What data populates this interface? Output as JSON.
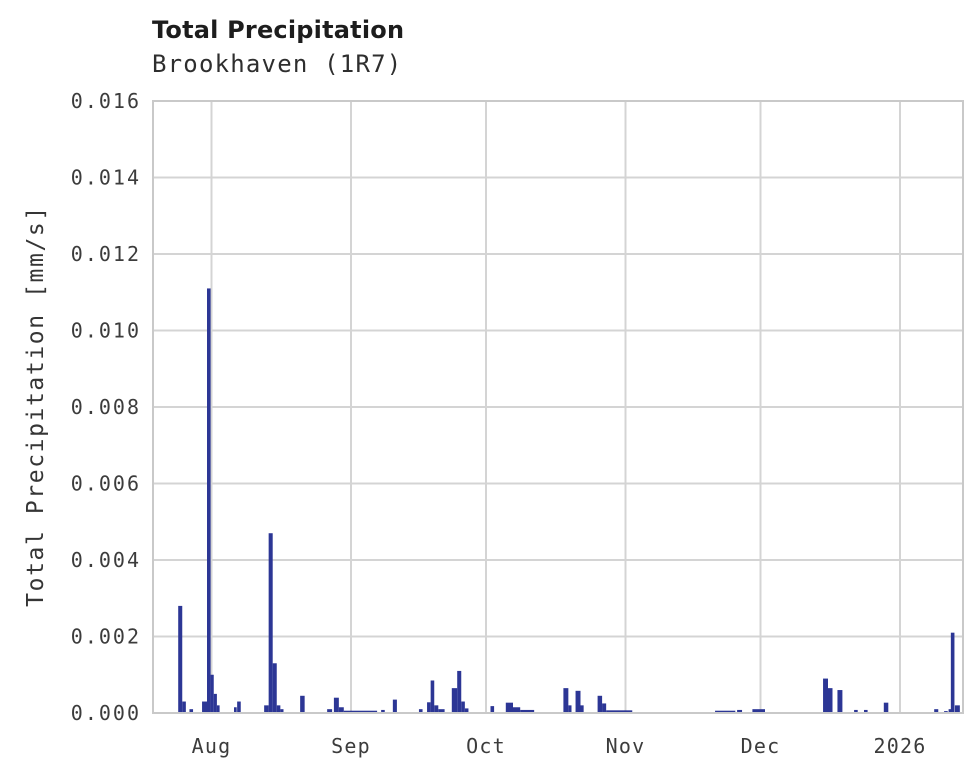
{
  "header": {
    "title": "Total Precipitation",
    "subtitle": "Brookhaven (1R7)"
  },
  "colors": {
    "bar": "#2c3695",
    "grid": "#d4d4d4",
    "border": "#c9c9c9",
    "tick_text": "#3c3c3c",
    "title_text": "#1d1d1d"
  },
  "chart_data": {
    "type": "bar",
    "title": "Total Precipitation",
    "subtitle": "Brookhaven (1R7)",
    "xlabel": "",
    "ylabel": "Total Precipitation [mm/s]",
    "ylim": [
      0,
      0.016
    ],
    "y_ticks": [
      "0.000",
      "0.002",
      "0.004",
      "0.006",
      "0.008",
      "0.010",
      "0.012",
      "0.014",
      "0.016"
    ],
    "y_tick_values": [
      0,
      0.002,
      0.004,
      0.006,
      0.008,
      0.01,
      0.012,
      0.014,
      0.016
    ],
    "grid": true,
    "legend": false,
    "x_axis_start_date": "2025-07-19",
    "x_axis_span_days": 180,
    "x_ticks": [
      {
        "label": "Aug",
        "day": 13
      },
      {
        "label": "Sep",
        "day": 44
      },
      {
        "label": "Oct",
        "day": 74
      },
      {
        "label": "Nov",
        "day": 105
      },
      {
        "label": "Dec",
        "day": 135
      },
      {
        "label": "2026",
        "day": 166
      }
    ],
    "series_name": "Total Precipitation [mm/s]",
    "bars_day_width_value": [
      [
        5.6,
        0.9,
        0.0028
      ],
      [
        6.5,
        0.8,
        0.0003
      ],
      [
        8.1,
        0.8,
        0.0001
      ],
      [
        10.9,
        1.1,
        0.0003
      ],
      [
        12.0,
        0.8,
        0.0111
      ],
      [
        12.8,
        0.7,
        0.001
      ],
      [
        13.5,
        0.7,
        0.0005
      ],
      [
        14.2,
        0.6,
        0.0002
      ],
      [
        18.0,
        0.6,
        0.00015
      ],
      [
        18.7,
        0.8,
        0.0003
      ],
      [
        24.7,
        1.0,
        0.0002
      ],
      [
        25.7,
        0.9,
        0.0047
      ],
      [
        26.6,
        0.9,
        0.0013
      ],
      [
        27.5,
        0.8,
        0.0002
      ],
      [
        28.3,
        0.7,
        0.0001
      ],
      [
        32.7,
        1.0,
        0.00045
      ],
      [
        38.7,
        1.1,
        0.0001
      ],
      [
        40.2,
        1.1,
        0.0004
      ],
      [
        41.3,
        1.1,
        0.00015
      ],
      [
        42.4,
        7.4,
        6e-05
      ],
      [
        50.7,
        0.8,
        8e-05
      ],
      [
        53.3,
        0.9,
        0.00035
      ],
      [
        59.1,
        0.8,
        0.0001
      ],
      [
        60.9,
        0.8,
        0.00028
      ],
      [
        61.7,
        0.8,
        0.00085
      ],
      [
        62.5,
        0.9,
        0.0002
      ],
      [
        63.4,
        1.4,
        0.0001
      ],
      [
        66.4,
        1.2,
        0.00065
      ],
      [
        67.6,
        0.9,
        0.0011
      ],
      [
        68.5,
        0.8,
        0.0003
      ],
      [
        69.3,
        0.8,
        0.00012
      ],
      [
        75.0,
        0.8,
        0.00018
      ],
      [
        78.4,
        1.6,
        0.00027
      ],
      [
        80.0,
        1.6,
        0.00015
      ],
      [
        81.6,
        3.1,
        8e-05
      ],
      [
        91.2,
        1.1,
        0.00065
      ],
      [
        92.3,
        0.7,
        0.0002
      ],
      [
        93.9,
        1.1,
        0.00058
      ],
      [
        95.0,
        0.7,
        0.0002
      ],
      [
        98.8,
        1.0,
        0.00045
      ],
      [
        99.8,
        0.9,
        0.00025
      ],
      [
        100.7,
        5.8,
        7e-05
      ],
      [
        124.9,
        4.5,
        6e-05
      ],
      [
        129.8,
        1.1,
        8e-05
      ],
      [
        133.2,
        2.8,
        0.0001
      ],
      [
        148.9,
        1.1,
        0.0009
      ],
      [
        150.0,
        1.0,
        0.00065
      ],
      [
        152.1,
        1.1,
        0.0006
      ],
      [
        155.8,
        0.8,
        8e-05
      ],
      [
        158.0,
        0.8,
        8e-05
      ],
      [
        162.4,
        1.0,
        0.00027
      ],
      [
        173.6,
        0.9,
        0.0001
      ],
      [
        175.8,
        0.8,
        5e-05
      ],
      [
        176.8,
        0.6,
        0.0001
      ],
      [
        177.3,
        0.8,
        0.0021
      ],
      [
        178.2,
        1.1,
        0.0002
      ]
    ]
  }
}
